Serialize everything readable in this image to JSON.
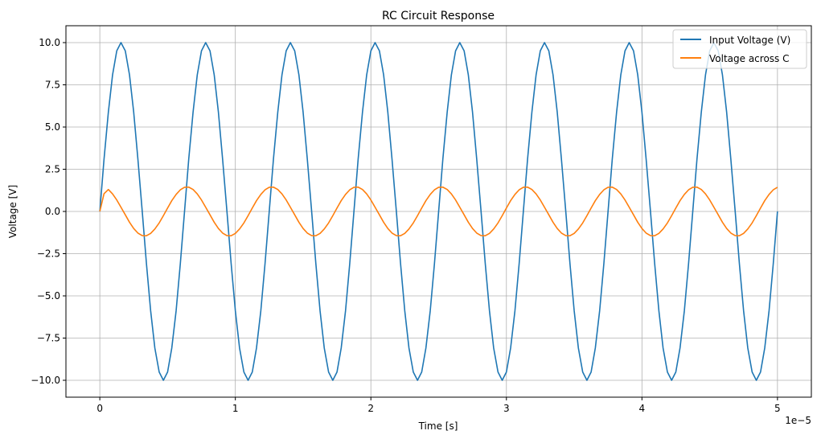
{
  "chart_data": {
    "type": "line",
    "title": "RC Circuit Response",
    "xlabel": "Time [s]",
    "ylabel": "Voltage [V]",
    "x_offset_text": "1e−5",
    "xlim": [
      -0.25,
      5.25
    ],
    "ylim": [
      -11,
      11
    ],
    "grid": true,
    "legend_placement": "top-right",
    "x_ticks": [
      "0",
      "1",
      "2",
      "3",
      "4",
      "5"
    ],
    "x_tick_values": [
      0,
      1,
      2,
      3,
      4,
      5
    ],
    "y_ticks": [
      "−10.0",
      "−7.5",
      "−5.0",
      "−2.5",
      "0.0",
      "2.5",
      "5.0",
      "7.5",
      "10.0"
    ],
    "y_tick_values": [
      -10,
      -7.5,
      -5,
      -2.5,
      0,
      2.5,
      5,
      7.5,
      10
    ],
    "x": [
      0,
      0.031,
      0.063,
      0.094,
      0.125,
      0.156,
      0.188,
      0.219,
      0.25,
      0.281,
      0.313,
      0.344,
      0.375,
      0.406,
      0.438,
      0.469,
      0.5,
      0.531,
      0.563,
      0.594,
      0.625,
      0.656,
      0.688,
      0.719,
      0.75,
      0.781,
      0.813,
      0.844,
      0.875,
      0.906,
      0.938,
      0.969,
      1,
      1.031,
      1.063,
      1.094,
      1.125,
      1.156,
      1.188,
      1.219,
      1.25,
      1.281,
      1.313,
      1.344,
      1.375,
      1.406,
      1.438,
      1.469,
      1.5,
      1.531,
      1.563,
      1.594,
      1.625,
      1.656,
      1.688,
      1.719,
      1.75,
      1.781,
      1.813,
      1.844,
      1.875,
      1.906,
      1.938,
      1.969,
      2,
      2.031,
      2.063,
      2.094,
      2.125,
      2.156,
      2.188,
      2.219,
      2.25,
      2.281,
      2.313,
      2.344,
      2.375,
      2.406,
      2.438,
      2.469,
      2.5,
      2.531,
      2.563,
      2.594,
      2.625,
      2.656,
      2.688,
      2.719,
      2.75,
      2.781,
      2.813,
      2.844,
      2.875,
      2.906,
      2.938,
      2.969,
      3,
      3.031,
      3.063,
      3.094,
      3.125,
      3.156,
      3.188,
      3.219,
      3.25,
      3.281,
      3.313,
      3.344,
      3.375,
      3.406,
      3.438,
      3.469,
      3.5,
      3.531,
      3.563,
      3.594,
      3.625,
      3.656,
      3.688,
      3.719,
      3.75,
      3.781,
      3.813,
      3.844,
      3.875,
      3.906,
      3.938,
      3.969,
      4,
      4.031,
      4.063,
      4.094,
      4.125,
      4.156,
      4.188,
      4.219,
      4.25,
      4.281,
      4.313,
      4.344,
      4.375,
      4.406,
      4.438,
      4.469,
      4.5,
      4.531,
      4.563,
      4.594,
      4.625,
      4.656,
      4.688,
      4.719,
      4.75,
      4.781,
      4.813,
      4.844,
      4.875,
      4.906,
      4.938,
      4.969,
      5
    ],
    "series": [
      {
        "name": "Input Voltage (V)",
        "color": "#1f77b4",
        "values": [
          0,
          3.09,
          5.88,
          8.09,
          9.51,
          10,
          9.51,
          8.09,
          5.88,
          3.09,
          0,
          -3.09,
          -5.88,
          -8.09,
          -9.51,
          -10,
          -9.51,
          -8.09,
          -5.88,
          -3.09,
          0,
          3.09,
          5.88,
          8.09,
          9.51,
          10,
          9.51,
          8.09,
          5.88,
          3.09,
          0,
          -3.09,
          -5.88,
          -8.09,
          -9.51,
          -10,
          -9.51,
          -8.09,
          -5.88,
          -3.09,
          0,
          3.09,
          5.88,
          8.09,
          9.51,
          10,
          9.51,
          8.09,
          5.88,
          3.09,
          0,
          -3.09,
          -5.88,
          -8.09,
          -9.51,
          -10,
          -9.51,
          -8.09,
          -5.88,
          -3.09,
          0,
          3.09,
          5.88,
          8.09,
          9.51,
          10,
          9.51,
          8.09,
          5.88,
          3.09,
          0,
          -3.09,
          -5.88,
          -8.09,
          -9.51,
          -10,
          -9.51,
          -8.09,
          -5.88,
          -3.09,
          0,
          3.09,
          5.88,
          8.09,
          9.51,
          10,
          9.51,
          8.09,
          5.88,
          3.09,
          0,
          -3.09,
          -5.88,
          -8.09,
          -9.51,
          -10,
          -9.51,
          -8.09,
          -5.88,
          -3.09,
          0,
          3.09,
          5.88,
          8.09,
          9.51,
          10,
          9.51,
          8.09,
          5.88,
          3.09,
          0,
          -3.09,
          -5.88,
          -8.09,
          -9.51,
          -10,
          -9.51,
          -8.09,
          -5.88,
          -3.09,
          0,
          3.09,
          5.88,
          8.09,
          9.51,
          10,
          9.51,
          8.09,
          5.88,
          3.09,
          0,
          -3.09,
          -5.88,
          -8.09,
          -9.51,
          -10,
          -9.51,
          -8.09,
          -5.88,
          -3.09,
          0,
          3.09,
          5.88,
          8.09,
          9.51,
          10,
          9.51,
          8.09,
          5.88,
          3.09,
          0,
          -3.09,
          -5.88,
          -8.09,
          -9.51,
          -10,
          -9.51,
          -8.09,
          -5.88,
          -3.09,
          0
        ]
      },
      {
        "name": "Voltage across C",
        "color": "#ff7f0e",
        "values": [
          0,
          1.05,
          1.3,
          1.04,
          0.68,
          0.25,
          -0.2,
          -0.64,
          -1.01,
          -1.28,
          -1.43,
          -1.44,
          -1.3,
          -1.04,
          -0.68,
          -0.25,
          0.2,
          0.64,
          1.01,
          1.28,
          1.43,
          1.44,
          1.3,
          1.04,
          0.68,
          0.25,
          -0.2,
          -0.64,
          -1.01,
          -1.28,
          -1.43,
          -1.44,
          -1.3,
          -1.04,
          -0.68,
          -0.25,
          0.2,
          0.64,
          1.01,
          1.28,
          1.43,
          1.44,
          1.3,
          1.04,
          0.68,
          0.25,
          -0.2,
          -0.64,
          -1.01,
          -1.28,
          -1.43,
          -1.44,
          -1.3,
          -1.04,
          -0.68,
          -0.25,
          0.2,
          0.64,
          1.01,
          1.28,
          1.43,
          1.44,
          1.3,
          1.04,
          0.68,
          0.25,
          -0.2,
          -0.64,
          -1.01,
          -1.28,
          -1.43,
          -1.44,
          -1.3,
          -1.04,
          -0.68,
          -0.25,
          0.2,
          0.64,
          1.01,
          1.28,
          1.43,
          1.44,
          1.3,
          1.04,
          0.68,
          0.25,
          -0.2,
          -0.64,
          -1.01,
          -1.28,
          -1.43,
          -1.44,
          -1.3,
          -1.04,
          -0.68,
          -0.25,
          0.2,
          0.64,
          1.01,
          1.28,
          1.43,
          1.44,
          1.3,
          1.04,
          0.68,
          0.25,
          -0.2,
          -0.64,
          -1.01,
          -1.28,
          -1.43,
          -1.44,
          -1.3,
          -1.04,
          -0.68,
          -0.25,
          0.2,
          0.64,
          1.01,
          1.28,
          1.43,
          1.44,
          1.3,
          1.04,
          0.68,
          0.25,
          -0.2,
          -0.64,
          -1.01,
          -1.28,
          -1.43,
          -1.44,
          -1.3,
          -1.04,
          -0.68,
          -0.25,
          0.2,
          0.64,
          1.01,
          1.28,
          1.43,
          1.44,
          1.3,
          1.04,
          0.68,
          0.25,
          -0.2,
          -0.64,
          -1.01,
          -1.28,
          -1.43,
          -1.44,
          -1.3,
          -1.04,
          -0.68,
          -0.25,
          0.2,
          0.64,
          1.01,
          1.28,
          1.43
        ]
      }
    ]
  }
}
